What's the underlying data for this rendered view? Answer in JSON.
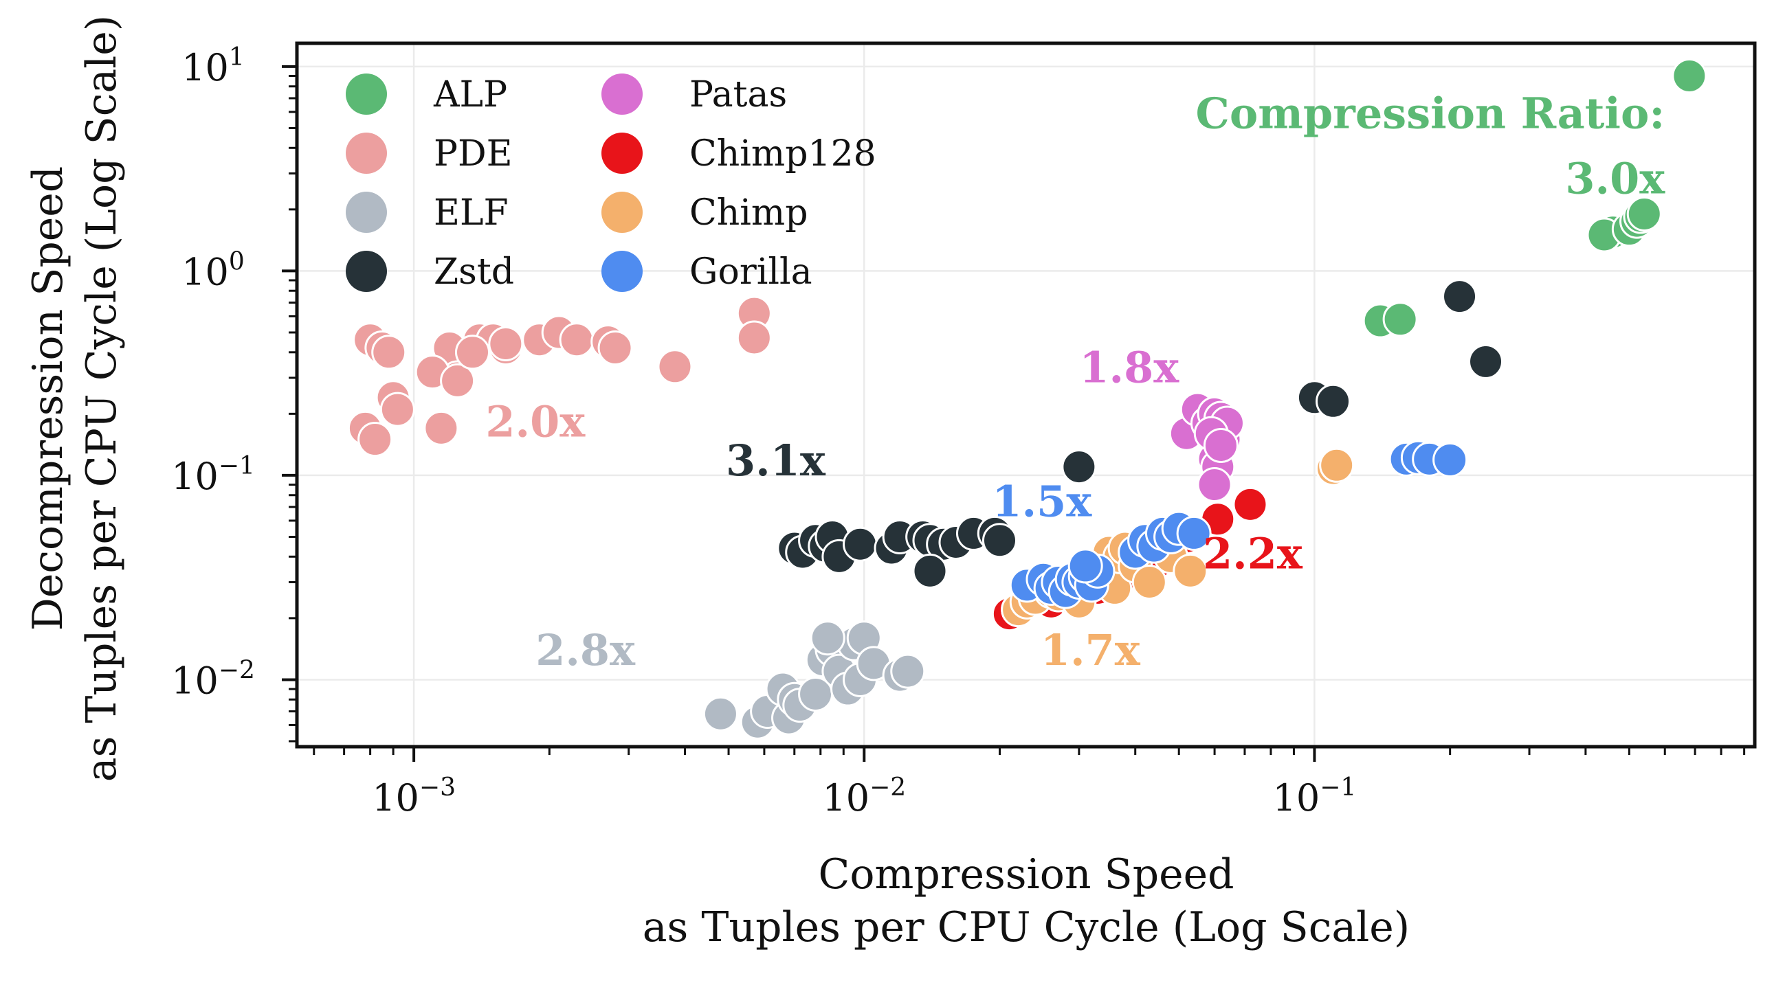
{
  "chart_data": {
    "type": "scatter",
    "title": "",
    "xlabel": [
      "Compression Speed",
      "as Tuples per CPU Cycle (Log Scale)"
    ],
    "ylabel": [
      "Decompression Speed",
      "as Tuples per CPU Cycle (Log Scale)"
    ],
    "xscale": "log",
    "yscale": "log",
    "xlim": [
      0.00055,
      0.95
    ],
    "ylim": [
      0.0047,
      13
    ],
    "grid": true,
    "legend_position": "top-left",
    "x_ticks": [
      {
        "value": 0.001,
        "base": "10",
        "exp": "−3"
      },
      {
        "value": 0.01,
        "base": "10",
        "exp": "−2"
      },
      {
        "value": 0.1,
        "base": "10",
        "exp": "−1"
      }
    ],
    "y_ticks": [
      {
        "value": 10,
        "base": "10",
        "exp": "1"
      },
      {
        "value": 1,
        "base": "10",
        "exp": "0"
      },
      {
        "value": 0.1,
        "base": "10",
        "exp": "−1"
      },
      {
        "value": 0.01,
        "base": "10",
        "exp": "−2"
      }
    ],
    "series": [
      {
        "name": "ALP",
        "color": "#5bb974",
        "x": [
          0.68,
          0.46,
          0.44,
          0.5,
          0.52,
          0.53,
          0.54,
          0.14,
          0.155
        ],
        "y": [
          9.0,
          1.55,
          1.5,
          1.6,
          1.75,
          1.85,
          1.9,
          0.57,
          0.58
        ]
      },
      {
        "name": "PDE",
        "color": "#ec9f9f",
        "x": [
          0.0008,
          0.00085,
          0.00088,
          0.0009,
          0.00078,
          0.00082,
          0.00092,
          0.0012,
          0.00125,
          0.0014,
          0.0015,
          0.0011,
          0.00115,
          0.00125,
          0.0016,
          0.0019,
          0.0021,
          0.0023,
          0.0027,
          0.0028,
          0.0038,
          0.0057,
          0.0057,
          0.0016,
          0.00135
        ],
        "y": [
          0.46,
          0.42,
          0.4,
          0.24,
          0.17,
          0.15,
          0.21,
          0.42,
          0.3,
          0.46,
          0.46,
          0.32,
          0.17,
          0.29,
          0.42,
          0.46,
          0.5,
          0.46,
          0.45,
          0.42,
          0.34,
          0.62,
          0.47,
          0.44,
          0.4
        ]
      },
      {
        "name": "ELF",
        "color": "#b1bac4",
        "x": [
          0.0048,
          0.0058,
          0.0061,
          0.0066,
          0.0068,
          0.007,
          0.0072,
          0.0078,
          0.0081,
          0.0085,
          0.0088,
          0.0092,
          0.0095,
          0.0098,
          0.01,
          0.0105,
          0.012,
          0.0125,
          0.0083
        ],
        "y": [
          0.0068,
          0.0062,
          0.007,
          0.009,
          0.0065,
          0.008,
          0.0075,
          0.0085,
          0.0125,
          0.014,
          0.011,
          0.009,
          0.015,
          0.01,
          0.016,
          0.012,
          0.0105,
          0.011,
          0.016
        ]
      },
      {
        "name": "Zstd",
        "color": "#263238",
        "x": [
          0.007,
          0.0073,
          0.0078,
          0.0082,
          0.0085,
          0.0088,
          0.0098,
          0.0115,
          0.012,
          0.0135,
          0.014,
          0.015,
          0.016,
          0.0175,
          0.0195,
          0.02,
          0.014,
          0.03,
          0.1,
          0.11,
          0.21,
          0.24
        ],
        "y": [
          0.044,
          0.042,
          0.048,
          0.045,
          0.05,
          0.04,
          0.046,
          0.044,
          0.05,
          0.05,
          0.048,
          0.046,
          0.047,
          0.052,
          0.052,
          0.048,
          0.034,
          0.11,
          0.24,
          0.23,
          0.75,
          0.36
        ]
      },
      {
        "name": "Patas",
        "color": "#d96fd1",
        "x": [
          0.052,
          0.055,
          0.058,
          0.06,
          0.061,
          0.062,
          0.063,
          0.064,
          0.06,
          0.061,
          0.059,
          0.06,
          0.062
        ],
        "y": [
          0.16,
          0.21,
          0.18,
          0.2,
          0.17,
          0.19,
          0.15,
          0.18,
          0.12,
          0.11,
          0.16,
          0.09,
          0.14
        ]
      },
      {
        "name": "Chimp128",
        "color": "#e8141a",
        "x": [
          0.021,
          0.022,
          0.026,
          0.029,
          0.033,
          0.035,
          0.038,
          0.041,
          0.045,
          0.048,
          0.052,
          0.061,
          0.072
        ],
        "y": [
          0.021,
          0.022,
          0.024,
          0.025,
          0.028,
          0.032,
          0.033,
          0.036,
          0.038,
          0.042,
          0.05,
          0.061,
          0.072
        ]
      },
      {
        "name": "Chimp",
        "color": "#f4b06c",
        "x": [
          0.022,
          0.023,
          0.024,
          0.026,
          0.027,
          0.028,
          0.03,
          0.032,
          0.033,
          0.035,
          0.036,
          0.037,
          0.038,
          0.04,
          0.043,
          0.048,
          0.053,
          0.11,
          0.112
        ],
        "y": [
          0.022,
          0.024,
          0.025,
          0.027,
          0.026,
          0.029,
          0.024,
          0.03,
          0.035,
          0.042,
          0.028,
          0.04,
          0.044,
          0.036,
          0.03,
          0.04,
          0.034,
          0.108,
          0.112
        ]
      },
      {
        "name": "Gorilla",
        "color": "#4f8cf0",
        "x": [
          0.023,
          0.025,
          0.026,
          0.027,
          0.028,
          0.029,
          0.03,
          0.031,
          0.032,
          0.033,
          0.031,
          0.04,
          0.042,
          0.044,
          0.046,
          0.048,
          0.05,
          0.054,
          0.16,
          0.17,
          0.18,
          0.2
        ],
        "y": [
          0.029,
          0.031,
          0.028,
          0.03,
          0.027,
          0.031,
          0.03,
          0.032,
          0.029,
          0.034,
          0.036,
          0.042,
          0.048,
          0.045,
          0.052,
          0.05,
          0.055,
          0.052,
          0.12,
          0.122,
          0.12,
          0.119
        ]
      }
    ],
    "annotations": [
      {
        "text": "Compression Ratio:",
        "color": "#5bb974",
        "x": 0.6,
        "y": 5.0
      },
      {
        "text": "3.0x",
        "color": "#5bb974",
        "x": 0.6,
        "y": 2.4
      },
      {
        "text": "2.0x",
        "color": "#ec9f9f",
        "x": 0.0024,
        "y": 0.155
      },
      {
        "text": "3.1x",
        "color": "#263238",
        "x": 0.0082,
        "y": 0.1
      },
      {
        "text": "1.8x",
        "color": "#d96fd1",
        "x": 0.05,
        "y": 0.285
      },
      {
        "text": "1.5x",
        "color": "#4f8cf0",
        "x": 0.032,
        "y": 0.063
      },
      {
        "text": "2.2x",
        "color": "#e8141a",
        "x": 0.094,
        "y": 0.035
      },
      {
        "text": "2.8x",
        "color": "#b1bac4",
        "x": 0.0031,
        "y": 0.0118
      },
      {
        "text": "1.7x",
        "color": "#f4b06c",
        "x": 0.041,
        "y": 0.0118
      }
    ]
  }
}
